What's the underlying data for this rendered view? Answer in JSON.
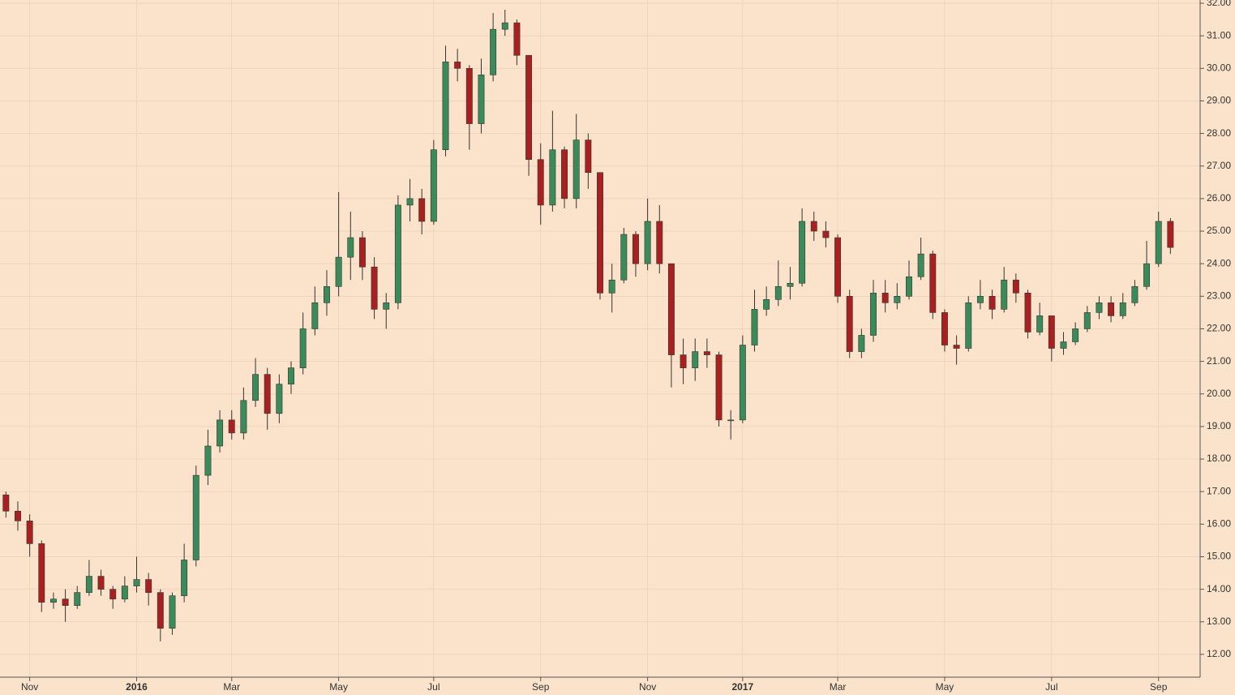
{
  "chart_data": {
    "type": "candlestick",
    "categories": [
      null,
      null,
      "Nov",
      null,
      null,
      null,
      null,
      null,
      null,
      null,
      null,
      "2016",
      null,
      null,
      null,
      null,
      null,
      null,
      null,
      "Mar",
      null,
      null,
      null,
      null,
      null,
      null,
      null,
      null,
      "May",
      null,
      null,
      null,
      null,
      null,
      null,
      null,
      "Jul",
      null,
      null,
      null,
      null,
      null,
      null,
      null,
      null,
      "Sep",
      null,
      null,
      null,
      null,
      null,
      null,
      null,
      null,
      "Nov",
      null,
      null,
      null,
      null,
      null,
      null,
      null,
      "2017",
      null,
      null,
      null,
      null,
      null,
      null,
      null,
      "Mar",
      null,
      null,
      null,
      null,
      null,
      null,
      null,
      null,
      "May",
      null,
      null,
      null,
      null,
      null,
      null,
      null,
      null,
      "Jul",
      null,
      null,
      null,
      null,
      null,
      null,
      null,
      null,
      "Sep",
      null
    ],
    "open": [
      16.9,
      16.4,
      16.1,
      15.4,
      13.6,
      13.7,
      13.5,
      13.9,
      14.4,
      14.0,
      13.7,
      14.1,
      14.3,
      13.9,
      12.8,
      13.8,
      14.9,
      17.5,
      18.4,
      19.2,
      18.8,
      19.8,
      20.6,
      19.4,
      20.3,
      20.8,
      22.0,
      22.8,
      23.3,
      24.2,
      24.8,
      23.9,
      22.6,
      22.8,
      25.8,
      26.0,
      25.3,
      27.5,
      30.2,
      30.0,
      28.3,
      29.8,
      31.2,
      31.4,
      30.4,
      27.2,
      25.8,
      27.5,
      26.0,
      27.8,
      26.8,
      23.1,
      23.5,
      24.9,
      24.0,
      25.3,
      24.0,
      21.2,
      20.8,
      21.3,
      21.2,
      19.2,
      19.2,
      21.5,
      22.6,
      22.9,
      23.3,
      23.4,
      25.3,
      25.0,
      24.8,
      23.0,
      21.3,
      21.8,
      23.1,
      22.8,
      23.0,
      23.6,
      24.3,
      22.5,
      21.5,
      21.4,
      22.8,
      23.0,
      22.6,
      23.5,
      23.1,
      21.9,
      22.4,
      21.4,
      21.6,
      22.0,
      22.5,
      22.8,
      22.4,
      22.8,
      23.3,
      24.0,
      25.3
    ],
    "high": [
      17.0,
      16.7,
      16.3,
      15.5,
      13.9,
      14.0,
      14.1,
      14.9,
      14.6,
      14.1,
      14.4,
      15.0,
      14.5,
      14.0,
      13.9,
      15.4,
      17.8,
      18.9,
      19.5,
      19.5,
      20.2,
      21.1,
      20.8,
      20.6,
      21.0,
      22.5,
      23.3,
      23.8,
      26.2,
      25.6,
      25.0,
      24.2,
      23.1,
      26.1,
      26.6,
      26.3,
      27.8,
      30.7,
      30.6,
      30.1,
      30.3,
      31.7,
      31.8,
      31.5,
      30.4,
      27.7,
      28.7,
      27.6,
      28.6,
      28.0,
      26.8,
      24.0,
      25.1,
      25.0,
      26.0,
      25.8,
      24.0,
      21.7,
      21.7,
      21.7,
      21.3,
      19.5,
      21.8,
      23.2,
      23.3,
      24.1,
      23.9,
      25.7,
      25.6,
      25.3,
      24.9,
      23.2,
      22.0,
      23.5,
      23.5,
      23.4,
      24.1,
      24.8,
      24.4,
      22.6,
      21.8,
      23.0,
      23.5,
      23.2,
      23.9,
      23.7,
      23.2,
      22.8,
      22.4,
      21.9,
      22.2,
      22.7,
      23.0,
      23.0,
      23.1,
      23.5,
      24.7,
      25.6,
      25.4
    ],
    "low": [
      16.2,
      15.8,
      15.0,
      13.3,
      13.4,
      13.0,
      13.4,
      13.8,
      13.8,
      13.4,
      13.6,
      13.9,
      13.5,
      12.4,
      12.6,
      13.6,
      14.7,
      17.2,
      18.2,
      18.6,
      18.6,
      19.6,
      18.9,
      19.1,
      20.0,
      20.6,
      21.8,
      22.4,
      23.0,
      23.5,
      23.5,
      22.3,
      22.0,
      22.6,
      25.3,
      24.9,
      25.2,
      27.3,
      29.6,
      27.5,
      28.0,
      29.6,
      31.0,
      30.1,
      26.7,
      25.2,
      25.6,
      25.7,
      25.7,
      26.3,
      22.9,
      22.5,
      23.4,
      23.6,
      23.8,
      23.7,
      20.2,
      20.3,
      20.4,
      20.8,
      19.0,
      18.6,
      19.1,
      21.3,
      22.4,
      22.7,
      22.9,
      23.3,
      24.7,
      24.5,
      22.8,
      21.1,
      21.1,
      21.6,
      22.5,
      22.6,
      22.9,
      23.5,
      22.3,
      21.3,
      20.9,
      21.3,
      22.6,
      22.3,
      22.5,
      22.8,
      21.7,
      21.8,
      21.0,
      21.2,
      21.5,
      21.9,
      22.3,
      22.2,
      22.3,
      22.7,
      23.2,
      23.9,
      24.3
    ],
    "close": [
      16.4,
      16.1,
      15.4,
      13.6,
      13.7,
      13.5,
      13.9,
      14.4,
      14.0,
      13.7,
      14.1,
      14.3,
      13.9,
      12.8,
      13.8,
      14.9,
      17.5,
      18.4,
      19.2,
      18.8,
      19.8,
      20.6,
      19.4,
      20.3,
      20.8,
      22.0,
      22.8,
      23.3,
      24.2,
      24.8,
      23.9,
      22.6,
      22.8,
      25.8,
      26.0,
      25.3,
      27.5,
      30.2,
      30.0,
      28.3,
      29.8,
      31.2,
      31.4,
      30.4,
      27.2,
      25.8,
      27.5,
      26.0,
      27.8,
      26.8,
      23.1,
      23.5,
      24.9,
      24.0,
      25.3,
      24.0,
      21.2,
      20.8,
      21.3,
      21.2,
      19.2,
      19.2,
      21.5,
      22.6,
      22.9,
      23.3,
      23.4,
      25.3,
      25.0,
      24.8,
      23.0,
      21.3,
      21.8,
      23.1,
      22.8,
      23.0,
      23.6,
      24.3,
      22.5,
      21.5,
      21.4,
      22.8,
      23.0,
      22.6,
      23.5,
      23.1,
      21.9,
      22.4,
      21.4,
      21.6,
      22.0,
      22.5,
      22.8,
      22.4,
      22.8,
      23.3,
      24.0,
      25.3,
      24.5
    ],
    "up_color": "#3a8a5a",
    "down_color": "#a8201f",
    "ylim": [
      11.3,
      32.1
    ],
    "yticks": [
      {
        "value": 12,
        "label": "12.00"
      },
      {
        "value": 13,
        "label": "13.00"
      },
      {
        "value": 14,
        "label": "14.00"
      },
      {
        "value": 15,
        "label": "15.00"
      },
      {
        "value": 16,
        "label": "16.00"
      },
      {
        "value": 17,
        "label": "17.00"
      },
      {
        "value": 18,
        "label": "18.00"
      },
      {
        "value": 19,
        "label": "19.00"
      },
      {
        "value": 20,
        "label": "20.00"
      },
      {
        "value": 21,
        "label": "21.00"
      },
      {
        "value": 22,
        "label": "22.00"
      },
      {
        "value": 23,
        "label": "23.00"
      },
      {
        "value": 24,
        "label": "24.00"
      },
      {
        "value": 25,
        "label": "25.00"
      },
      {
        "value": 26,
        "label": "26.00"
      },
      {
        "value": 27,
        "label": "27.00"
      },
      {
        "value": 28,
        "label": "28.00"
      },
      {
        "value": 29,
        "label": "29.00"
      },
      {
        "value": 30,
        "label": "30.00"
      },
      {
        "value": 31,
        "label": "31.00"
      },
      {
        "value": 32,
        "label": "32.00"
      }
    ],
    "grid": true
  }
}
